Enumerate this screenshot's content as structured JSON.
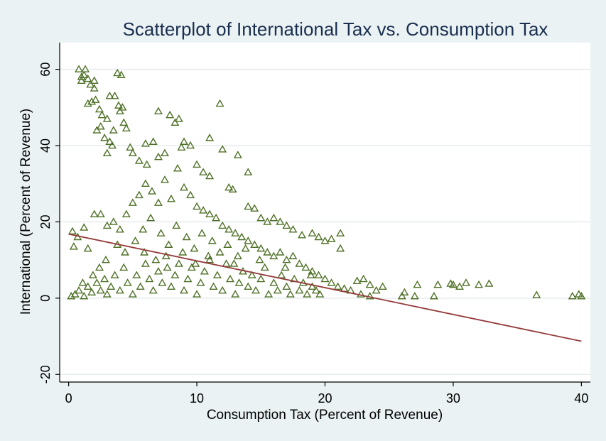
{
  "chart_data": {
    "type": "scatter",
    "title": "Scatterplot of International Tax vs. Consumption Tax",
    "xlabel": "Consumption Tax (Percent of Revenue)",
    "ylabel": "International (Percent of Revenue)",
    "xlim": [
      -0.7,
      40.7
    ],
    "ylim": [
      -22,
      67
    ],
    "xticks": [
      0,
      10,
      20,
      30,
      40
    ],
    "yticks": [
      -20,
      0,
      20,
      40,
      60
    ],
    "grid": "horizontal",
    "marker": "hollow-triangle",
    "colors": {
      "background": "#eaf2f3",
      "plot_background": "#ffffff",
      "points": "#4f7026",
      "fit_line": "#943a3a",
      "grid": "#e6ecee",
      "title": "#1a2e4f"
    },
    "series": [
      {
        "values": [
          [
            0.3,
            17.5
          ],
          [
            0.8,
            60
          ],
          [
            1.0,
            58
          ],
          [
            1.2,
            58.5
          ],
          [
            1.3,
            60
          ],
          [
            1.5,
            57.5
          ],
          [
            1.0,
            57
          ],
          [
            1.7,
            56
          ],
          [
            2.0,
            57
          ],
          [
            2.0,
            55
          ],
          [
            1.5,
            51
          ],
          [
            1.8,
            51.5
          ],
          [
            2.1,
            52
          ],
          [
            2.4,
            49.5
          ],
          [
            2.6,
            48
          ],
          [
            3.0,
            47
          ],
          [
            3.2,
            53
          ],
          [
            3.6,
            53
          ],
          [
            3.8,
            59
          ],
          [
            4.1,
            58.5
          ],
          [
            3.9,
            50.5
          ],
          [
            4.2,
            50
          ],
          [
            4.0,
            49
          ],
          [
            4.3,
            46
          ],
          [
            2.5,
            45
          ],
          [
            2.2,
            44
          ],
          [
            3.5,
            44
          ],
          [
            4.5,
            44.5
          ],
          [
            2.8,
            42
          ],
          [
            3.2,
            41
          ],
          [
            3.4,
            40
          ],
          [
            4.8,
            39.5
          ],
          [
            3.0,
            38
          ],
          [
            5.0,
            38
          ],
          [
            5.5,
            36
          ],
          [
            6.0,
            40.5
          ],
          [
            6.6,
            41
          ],
          [
            6.1,
            35
          ],
          [
            7.0,
            37
          ],
          [
            7.5,
            38
          ],
          [
            7.0,
            49
          ],
          [
            7.9,
            48
          ],
          [
            8.3,
            46
          ],
          [
            8.6,
            47
          ],
          [
            9.0,
            41
          ],
          [
            8.8,
            39.5
          ],
          [
            9.5,
            40
          ],
          [
            10.0,
            35
          ],
          [
            10.5,
            33
          ],
          [
            11.0,
            32
          ],
          [
            11.0,
            42
          ],
          [
            11.8,
            51
          ],
          [
            12.0,
            39
          ],
          [
            13.2,
            37.5
          ],
          [
            14.0,
            33
          ],
          [
            12.5,
            29
          ],
          [
            12.8,
            28.5
          ],
          [
            14.0,
            24
          ],
          [
            14.5,
            23.5
          ],
          [
            15.0,
            21
          ],
          [
            15.5,
            20
          ],
          [
            16.0,
            21
          ],
          [
            16.5,
            20
          ],
          [
            17.0,
            19
          ],
          [
            17.5,
            18
          ],
          [
            18.2,
            16.5
          ],
          [
            19.0,
            17
          ],
          [
            19.5,
            16
          ],
          [
            20.0,
            15
          ],
          [
            20.5,
            15.5
          ],
          [
            21.2,
            17
          ],
          [
            21.2,
            13
          ],
          [
            0.4,
            13.5
          ],
          [
            0.7,
            16
          ],
          [
            1.2,
            18.5
          ],
          [
            1.5,
            13
          ],
          [
            2.0,
            22
          ],
          [
            2.5,
            22
          ],
          [
            3.0,
            19
          ],
          [
            3.5,
            20
          ],
          [
            4.0,
            18
          ],
          [
            4.5,
            22
          ],
          [
            5.0,
            25
          ],
          [
            5.5,
            27
          ],
          [
            6.0,
            30
          ],
          [
            6.5,
            28
          ],
          [
            7.0,
            25
          ],
          [
            7.5,
            31
          ],
          [
            8.0,
            26
          ],
          [
            8.5,
            34
          ],
          [
            9.0,
            29
          ],
          [
            9.5,
            27
          ],
          [
            10.0,
            24
          ],
          [
            10.5,
            23
          ],
          [
            11.0,
            22
          ],
          [
            11.5,
            21
          ],
          [
            12.0,
            19
          ],
          [
            12.5,
            18
          ],
          [
            13.0,
            17
          ],
          [
            13.5,
            16
          ],
          [
            14.0,
            15
          ],
          [
            14.5,
            14
          ],
          [
            15.0,
            13
          ],
          [
            15.5,
            12
          ],
          [
            16.0,
            11
          ],
          [
            16.5,
            12
          ],
          [
            17.0,
            10
          ],
          [
            17.5,
            11
          ],
          [
            18.0,
            9
          ],
          [
            18.5,
            8
          ],
          [
            19.0,
            7
          ],
          [
            19.5,
            6
          ],
          [
            20.0,
            5
          ],
          [
            20.5,
            4
          ],
          [
            21.0,
            3
          ],
          [
            21.5,
            2.5
          ],
          [
            22.0,
            2
          ],
          [
            22.5,
            4.5
          ],
          [
            23.0,
            5
          ],
          [
            23.5,
            3.5
          ],
          [
            24.0,
            2
          ],
          [
            24.5,
            3
          ],
          [
            22.8,
            1
          ],
          [
            23.5,
            0.5
          ],
          [
            26.0,
            0.5
          ],
          [
            26.2,
            1.5
          ],
          [
            27.0,
            0.5
          ],
          [
            27.2,
            3.5
          ],
          [
            28.5,
            0.5
          ],
          [
            28.8,
            3.5
          ],
          [
            29.8,
            3.8
          ],
          [
            30.0,
            3.5
          ],
          [
            30.5,
            3
          ],
          [
            31.0,
            4
          ],
          [
            32.0,
            3.5
          ],
          [
            32.8,
            3.8
          ],
          [
            36.5,
            0.8
          ],
          [
            39.3,
            0.5
          ],
          [
            39.8,
            1
          ],
          [
            40.0,
            0.5
          ],
          [
            0.2,
            0.5
          ],
          [
            0.5,
            1
          ],
          [
            0.8,
            2
          ],
          [
            1.2,
            0.5
          ],
          [
            1.5,
            3
          ],
          [
            1.8,
            1.5
          ],
          [
            2.2,
            4
          ],
          [
            2.5,
            2
          ],
          [
            2.8,
            5
          ],
          [
            3.0,
            1
          ],
          [
            3.3,
            3
          ],
          [
            3.6,
            6
          ],
          [
            4.0,
            2
          ],
          [
            4.3,
            8
          ],
          [
            4.6,
            4
          ],
          [
            5.0,
            1
          ],
          [
            5.3,
            6
          ],
          [
            5.6,
            3
          ],
          [
            6.0,
            9
          ],
          [
            6.3,
            5
          ],
          [
            6.6,
            2
          ],
          [
            7.0,
            7
          ],
          [
            7.3,
            4
          ],
          [
            7.6,
            11
          ],
          [
            8.0,
            3
          ],
          [
            8.3,
            6
          ],
          [
            8.6,
            9
          ],
          [
            9.0,
            2
          ],
          [
            9.3,
            5
          ],
          [
            9.6,
            8
          ],
          [
            10.0,
            1
          ],
          [
            10.3,
            4
          ],
          [
            10.6,
            7
          ],
          [
            11.0,
            10
          ],
          [
            11.3,
            3
          ],
          [
            11.6,
            6
          ],
          [
            12.0,
            2
          ],
          [
            12.3,
            9
          ],
          [
            12.6,
            5
          ],
          [
            13.0,
            1
          ],
          [
            13.3,
            4
          ],
          [
            13.6,
            7
          ],
          [
            14.0,
            3
          ],
          [
            14.3,
            6
          ],
          [
            14.6,
            2
          ],
          [
            15.0,
            5
          ],
          [
            15.3,
            8
          ],
          [
            15.6,
            1
          ],
          [
            16.0,
            4
          ],
          [
            16.3,
            2
          ],
          [
            16.6,
            6
          ],
          [
            17.0,
            3
          ],
          [
            17.3,
            1
          ],
          [
            17.6,
            5
          ],
          [
            18.0,
            2
          ],
          [
            18.3,
            4
          ],
          [
            18.6,
            1
          ],
          [
            19.0,
            3
          ],
          [
            19.3,
            2
          ],
          [
            19.6,
            1
          ],
          [
            5.2,
            15
          ],
          [
            5.8,
            18
          ],
          [
            6.4,
            21
          ],
          [
            7.2,
            17
          ],
          [
            7.8,
            14
          ],
          [
            8.4,
            19
          ],
          [
            9.2,
            16
          ],
          [
            9.8,
            13
          ],
          [
            10.4,
            17
          ],
          [
            11.2,
            15
          ],
          [
            11.8,
            12
          ],
          [
            12.4,
            14
          ],
          [
            13.2,
            11
          ],
          [
            13.8,
            13
          ],
          [
            4.4,
            12
          ],
          [
            3.8,
            14
          ],
          [
            2.9,
            10
          ],
          [
            2.4,
            8
          ],
          [
            1.9,
            6
          ],
          [
            1.1,
            4
          ],
          [
            5.9,
            12
          ],
          [
            6.8,
            10
          ],
          [
            7.7,
            8
          ],
          [
            8.9,
            12
          ],
          [
            9.9,
            9
          ],
          [
            10.9,
            11
          ],
          [
            12.9,
            9
          ],
          [
            14.9,
            10
          ],
          [
            16.9,
            8
          ],
          [
            18.9,
            6
          ]
        ]
      }
    ],
    "fit_line": [
      [
        0,
        16.8
      ],
      [
        40,
        -11.3
      ]
    ]
  }
}
